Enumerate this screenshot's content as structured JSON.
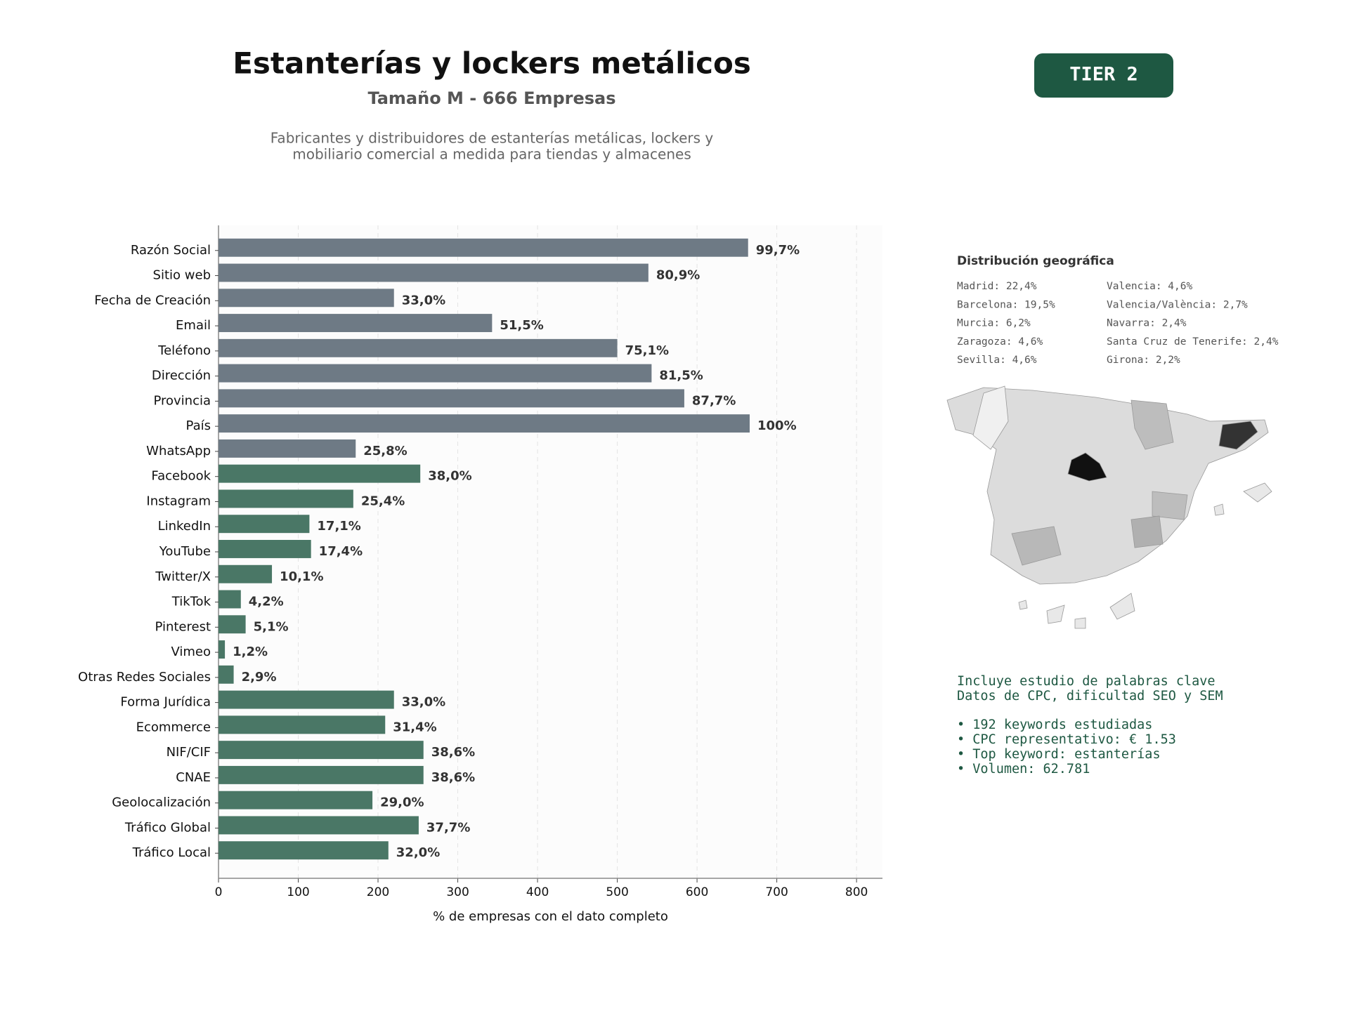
{
  "chart_data": {
    "type": "barh",
    "title": "Estanterías y lockers metálicos",
    "subtitle": "Tamaño M - 666 Empresas",
    "description": [
      "Fabricantes y distribuidores de estanterías metálicas, lockers y",
      "mobiliario comercial a medida para tiendas y almacenes"
    ],
    "badge": "TIER 2",
    "xlabel": "% de empresas con el dato completo",
    "categories": [
      "Razón Social",
      "Sitio web",
      "Fecha de Creación",
      "Email",
      "Teléfono",
      "Dirección",
      "Provincia",
      "País",
      "WhatsApp",
      "Facebook",
      "Instagram",
      "LinkedIn",
      "YouTube",
      "Twitter/X",
      "TikTok",
      "Pinterest",
      "Vimeo",
      "Otras Redes Sociales",
      "Forma Jurídica",
      "Ecommerce",
      "NIF/CIF",
      "CNAE",
      "Geolocalización",
      "Tráfico Global",
      "Tráfico Local"
    ],
    "values": [
      664,
      539,
      220,
      343,
      500,
      543,
      584,
      666,
      172,
      253,
      169,
      114,
      116,
      67,
      28,
      34,
      8,
      19,
      220,
      209,
      257,
      257,
      193,
      251,
      213
    ],
    "value_labels": [
      "99,7%",
      "80,9%",
      "33,0%",
      "51,5%",
      "75,1%",
      "81,5%",
      "87,7%",
      "100%",
      "25,8%",
      "38,0%",
      "25,4%",
      "17,1%",
      "17,4%",
      "10,1%",
      "4,2%",
      "5,1%",
      "1,2%",
      "2,9%",
      "33,0%",
      "31,4%",
      "38,6%",
      "38,6%",
      "29,0%",
      "37,7%",
      "32,0%"
    ],
    "colors": [
      "#6e7a85",
      "#6e7a85",
      "#6e7a85",
      "#6e7a85",
      "#6e7a85",
      "#6e7a85",
      "#6e7a85",
      "#6e7a85",
      "#6e7a85",
      "#4a7766",
      "#4a7766",
      "#4a7766",
      "#4a7766",
      "#4a7766",
      "#4a7766",
      "#4a7766",
      "#4a7766",
      "#4a7766",
      "#4a7766",
      "#4a7766",
      "#4a7766",
      "#4a7766",
      "#4a7766",
      "#4a7766",
      "#4a7766"
    ],
    "xlim": [
      0,
      832.5
    ],
    "xticks": [
      0,
      100,
      200,
      300,
      400,
      500,
      600,
      700,
      800
    ],
    "grid": true,
    "geo": {
      "title": "Distribución geográfica",
      "items": [
        "Madrid: 22,4%",
        "Barcelona: 19,5%",
        "Murcia: 6,2%",
        "Zaragoza: 4,6%",
        "Sevilla: 4,6%",
        "Valencia: 4,6%",
        "Valencia/València: 2,7%",
        "Navarra: 2,4%",
        "Santa Cruz de Tenerife: 2,4%",
        "Girona: 2,2%"
      ]
    },
    "notes": [
      "Incluye estudio de palabras clave",
      "Datos de CPC, dificultad SEO y SEM",
      "• 192 keywords estudiadas",
      "• CPC representativo: € 1.53",
      "• Top keyword: estanterías",
      "• Volumen: 62.781"
    ]
  }
}
